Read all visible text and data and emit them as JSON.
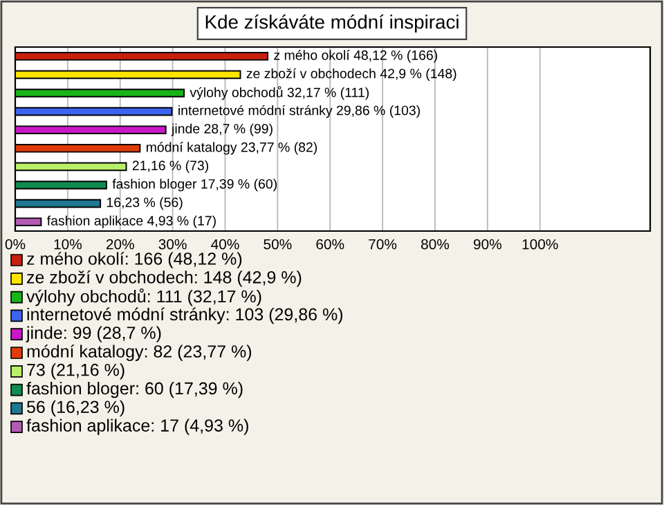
{
  "chart_data": {
    "type": "bar",
    "orientation": "horizontal",
    "title": "Kde získáváte módní inspiraci",
    "categories": [
      null,
      null,
      null,
      null,
      null,
      null,
      null,
      null,
      null,
      null
    ],
    "values": [
      48.12,
      42.9,
      32.17,
      29.86,
      28.7,
      23.77,
      21.16,
      17.39,
      16.23,
      4.93
    ],
    "colors": [
      "#c8200f",
      "#ffe400",
      "#18b418",
      "#3c64f0",
      "#c818c8",
      "#e03c0a",
      "#b8f068",
      "#108c50",
      "#1e7890",
      "#b45ab4"
    ],
    "value_labels": [
      "z mého okolí 48,12 % (166)",
      "ze zboží v obchodech 42,9 % (148)",
      "výlohy obchodů 32,17 % (111)",
      "internetové módní stránky 29,86 % (103)",
      "jinde 28,7 % (99)",
      "módní katalogy 23,77 % (82)",
      "21,16 % (73)",
      "fashion bloger 17,39 % (60)",
      "16,23 % (56)",
      "fashion aplikace 4,93 % (17)"
    ],
    "xlim": [
      0,
      121
    ],
    "xticks": [
      {
        "value": 0,
        "label": "0%"
      },
      {
        "value": 10,
        "label": "10%"
      },
      {
        "value": 20,
        "label": "20%"
      },
      {
        "value": 30,
        "label": "30%"
      },
      {
        "value": 40,
        "label": "40%"
      },
      {
        "value": 50,
        "label": "50%"
      },
      {
        "value": 60,
        "label": "60%"
      },
      {
        "value": 70,
        "label": "70%"
      },
      {
        "value": 80,
        "label": "80%"
      },
      {
        "value": 90,
        "label": "90%"
      },
      {
        "value": 100,
        "label": "100%"
      }
    ],
    "grid": "x",
    "annotations": [
      "z mého okolí: 166 (48,12 %)",
      "ze zboží v obchodech: 148 (42,9 %)",
      "výlohy obchodů: 111 (32,17 %)",
      "internetové módní stránky: 103 (29,86 %)",
      "jinde: 99 (28,7 %)",
      "módní katalogy: 82 (23,77 %)",
      "73 (21,16 %)",
      "fashion bloger: 60 (17,39 %)",
      "56 (16,23 %)",
      "fashion aplikace: 17 (4,93 %)"
    ]
  }
}
